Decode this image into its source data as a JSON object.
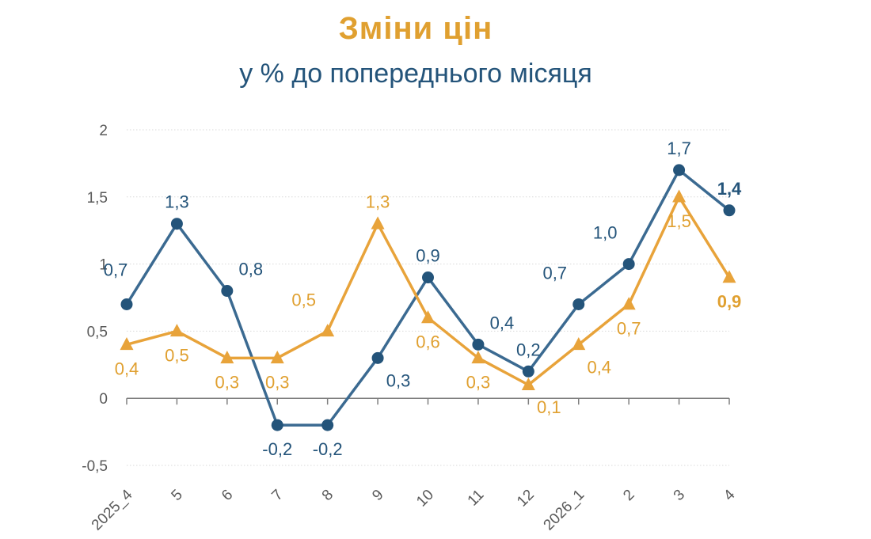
{
  "chart_data": {
    "type": "line",
    "title": "Зміни цін",
    "subtitle": "у % до попереднього місяця",
    "categories": [
      "2025_4",
      "5",
      "6",
      "7",
      "8",
      "9",
      "10",
      "11",
      "12",
      "2026_1",
      "2",
      "3",
      "4"
    ],
    "ylim": [
      -0.5,
      2
    ],
    "yticks": [
      -0.5,
      0,
      0.5,
      1,
      1.5,
      2
    ],
    "ytick_labels": [
      "-0,5",
      "0",
      "0,5",
      "1",
      "1,5",
      "2"
    ],
    "grid": true,
    "series": [
      {
        "color": "#3b6a91",
        "label_color": "#24547a",
        "marker": "circle",
        "values": [
          0.7,
          1.3,
          0.8,
          -0.2,
          -0.2,
          0.3,
          0.9,
          0.4,
          0.2,
          0.7,
          1.0,
          1.7,
          1.4
        ],
        "labels": [
          "0,7",
          "1,3",
          "0,8",
          "-0,2",
          "-0,2",
          "0,3",
          "0,9",
          "0,4",
          "0,2",
          "0,7",
          "1,0",
          "1,7",
          "1,4"
        ],
        "label_pos": [
          "left",
          "above",
          "above-right",
          "below",
          "below",
          "below-right",
          "above",
          "above-right",
          "above",
          "above-left",
          "above-left",
          "above",
          "above"
        ],
        "bold_last": true
      },
      {
        "color": "#e8a33a",
        "label_color": "#e0a030",
        "marker": "triangle",
        "values": [
          0.4,
          0.5,
          0.3,
          0.3,
          0.5,
          1.3,
          0.6,
          0.3,
          0.1,
          0.4,
          0.7,
          1.5,
          0.9
        ],
        "labels": [
          "0,4",
          "0,5",
          "0,3",
          "0,3",
          "0,5",
          "1,3",
          "0,6",
          "0,3",
          "0,1",
          "0,4",
          "0,7",
          "1,5",
          "0,9"
        ],
        "label_pos": [
          "below",
          "below",
          "below",
          "below",
          "above-left",
          "above",
          "below",
          "below",
          "below-right",
          "below-right",
          "below",
          "below",
          "below"
        ],
        "bold_last": true
      }
    ]
  }
}
